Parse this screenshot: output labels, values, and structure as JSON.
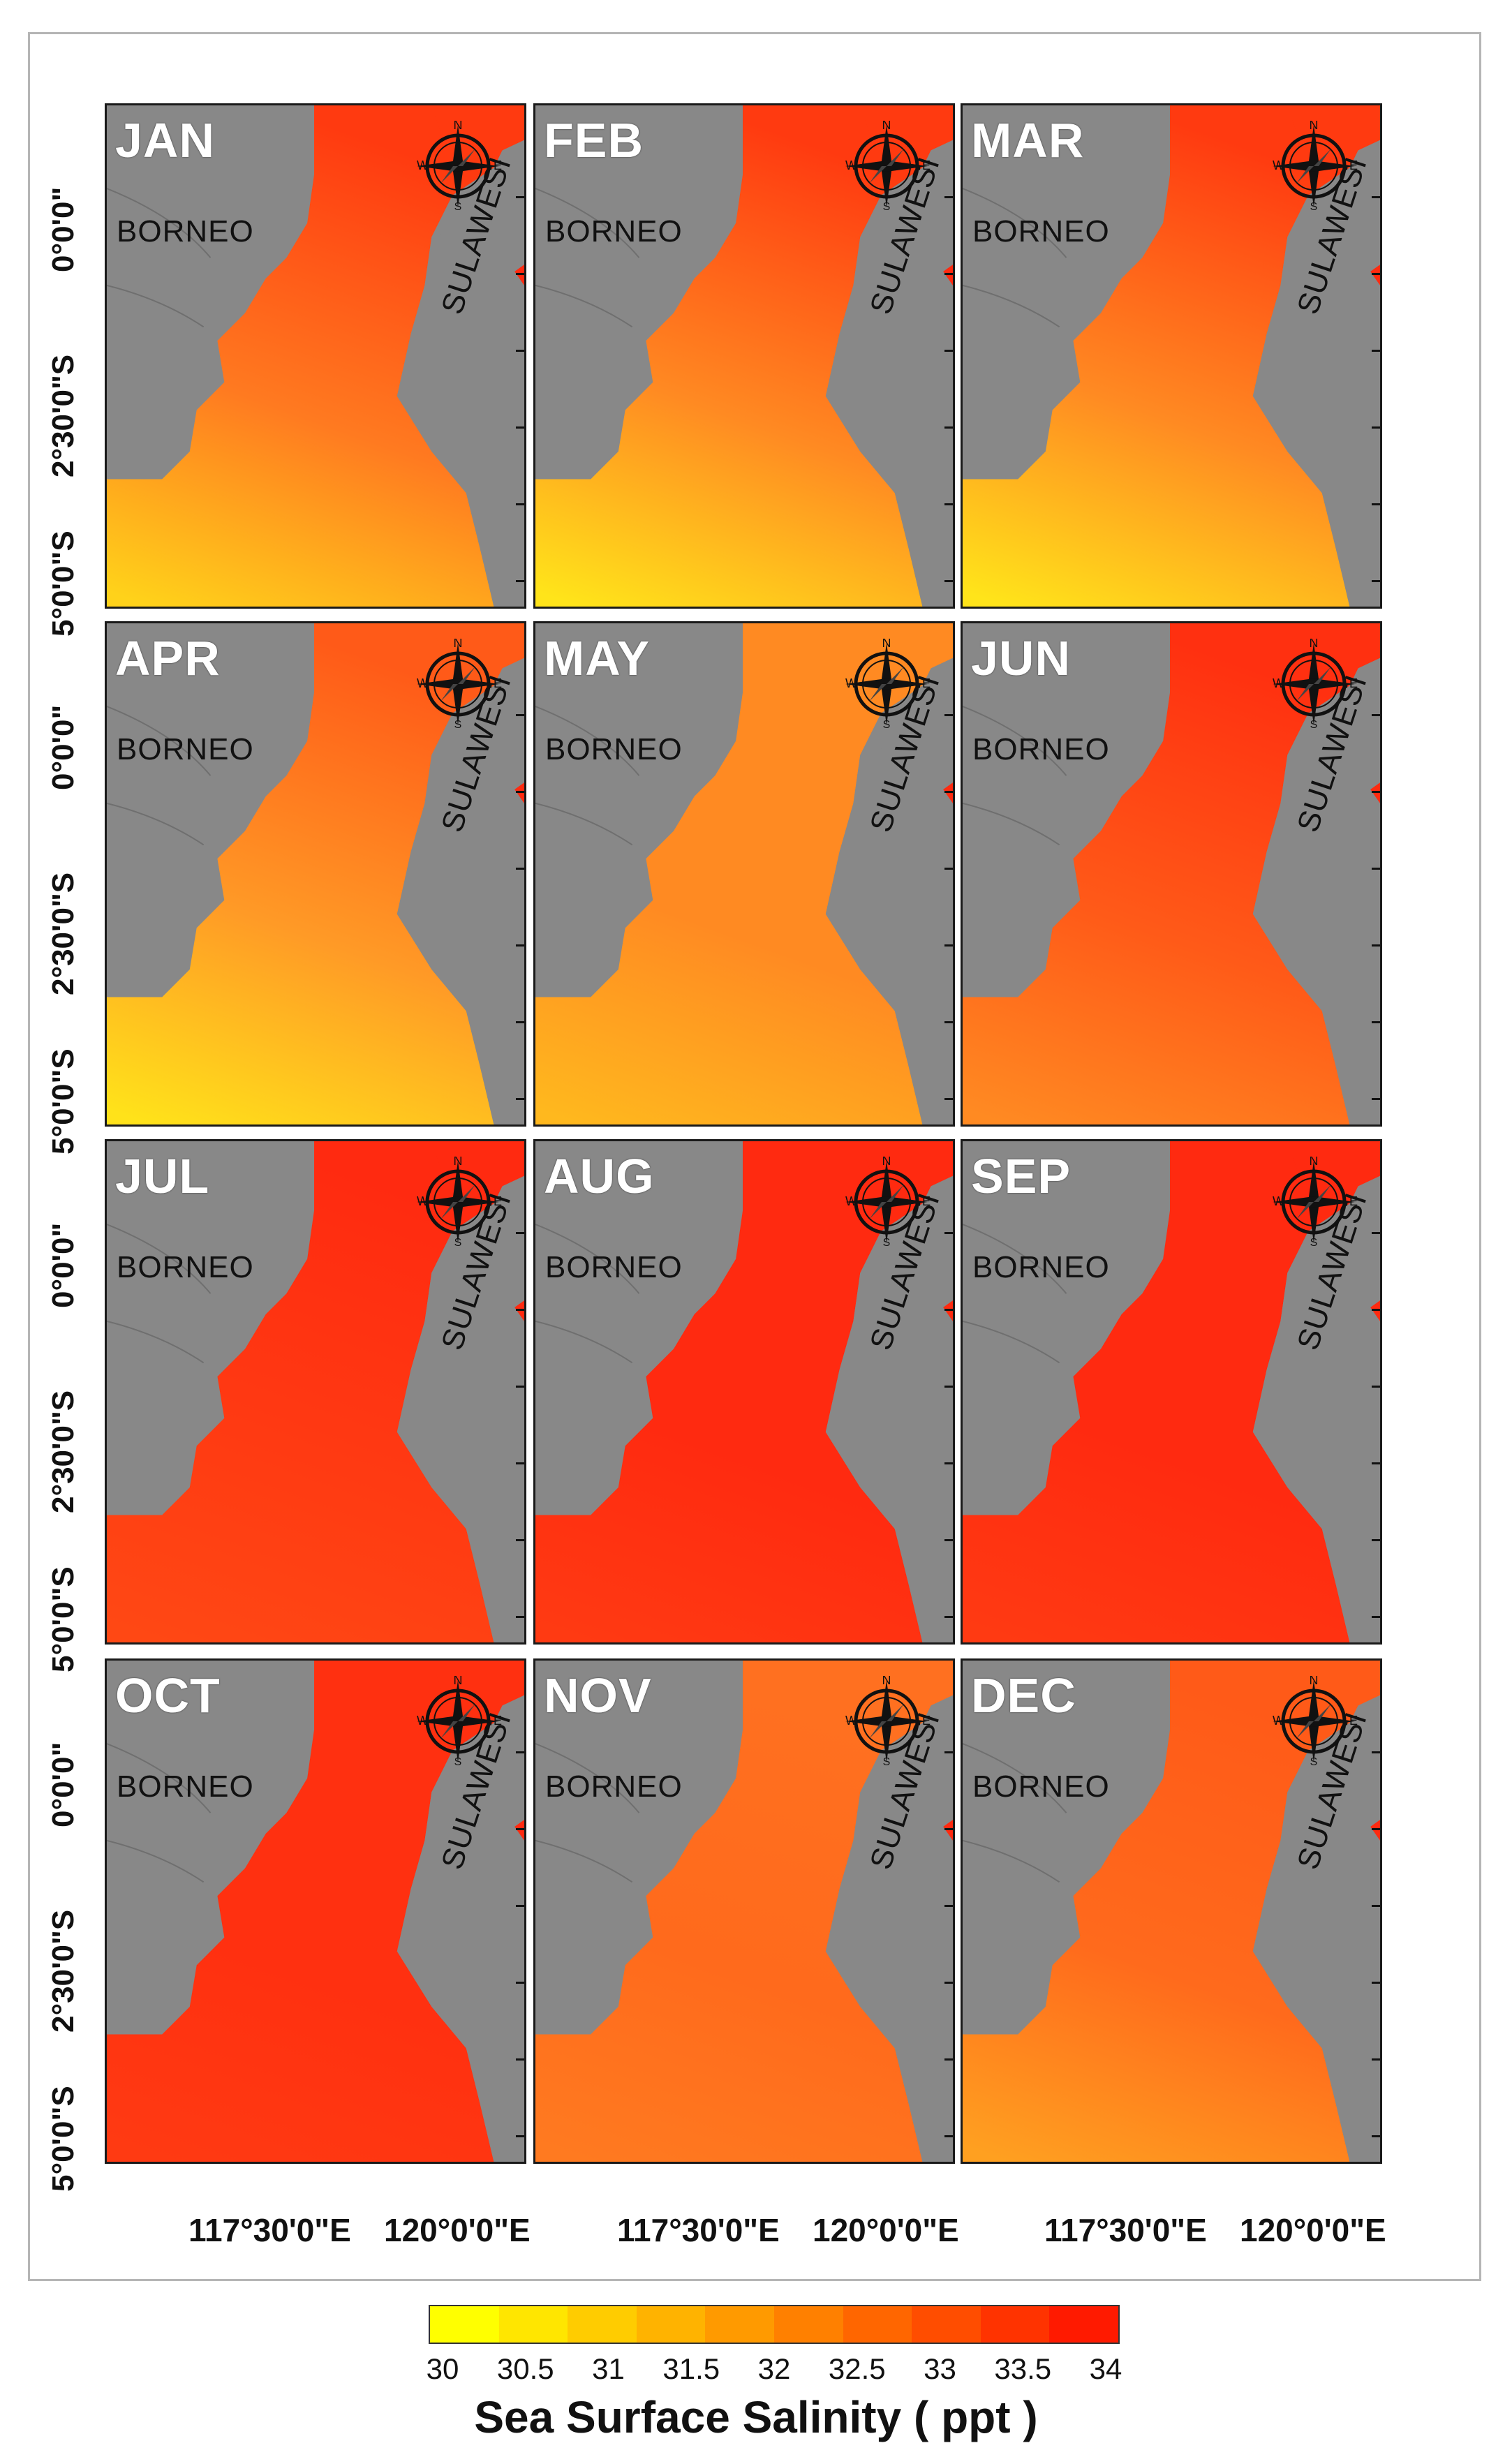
{
  "months": [
    "JAN",
    "FEB",
    "MAR",
    "APR",
    "MAY",
    "JUN",
    "JUL",
    "AUG",
    "SEP",
    "OCT",
    "NOV",
    "DEC"
  ],
  "labels": {
    "borneo": "BORNEO",
    "sulawesi": "SULAWESI"
  },
  "compass": {
    "n": "N",
    "s": "S",
    "e": "E",
    "w": "W"
  },
  "axes": {
    "y_ticks": [
      "0°0'0\"",
      "2°30'0\"S",
      "5°0'0\"S"
    ],
    "x_ticks": [
      "117°30'0\"E",
      "120°0'0\"E"
    ]
  },
  "colorbar": {
    "title": "Sea Surface Salinity ( ppt )",
    "ticks": [
      "30",
      "30.5",
      "31",
      "31.5",
      "32",
      "32.5",
      "33",
      "33.5",
      "34"
    ],
    "min": 30,
    "max": 34,
    "colors": [
      "#ffff00",
      "#ffe600",
      "#ffcc00",
      "#ffb300",
      "#ff9a00",
      "#ff8000",
      "#ff6600",
      "#ff4d00",
      "#ff3300",
      "#ff1a00"
    ]
  },
  "colors": {
    "land": "#888888",
    "water_low": "#ffff00",
    "water_high": "#ff1a00"
  },
  "map_data": {
    "salinity_tint": [
      {
        "month": "JAN",
        "north": "#ff3a10",
        "mid": "#ff7a20",
        "south": "#ffd21a"
      },
      {
        "month": "FEB",
        "north": "#ff3a10",
        "mid": "#ff8a22",
        "south": "#ffe41a"
      },
      {
        "month": "MAR",
        "north": "#ff3a10",
        "mid": "#ff8a22",
        "south": "#ffe41a"
      },
      {
        "month": "APR",
        "north": "#ff5a18",
        "mid": "#ff9a26",
        "south": "#ffe21a"
      },
      {
        "month": "MAY",
        "north": "#ff8a22",
        "mid": "#ff8a22",
        "south": "#ffb81e"
      },
      {
        "month": "JUN",
        "north": "#ff3010",
        "mid": "#ff5a18",
        "south": "#ff8a22"
      },
      {
        "month": "JUL",
        "north": "#ff2a10",
        "mid": "#ff3a12",
        "south": "#ff4814"
      },
      {
        "month": "AUG",
        "north": "#ff2a10",
        "mid": "#ff2a10",
        "south": "#ff3a12"
      },
      {
        "month": "SEP",
        "north": "#ff2a10",
        "mid": "#ff2a10",
        "south": "#ff3a12"
      },
      {
        "month": "OCT",
        "north": "#ff3010",
        "mid": "#ff3010",
        "south": "#ff3a12"
      },
      {
        "month": "NOV",
        "north": "#ff7020",
        "mid": "#ff6a1c",
        "south": "#ff7a20"
      },
      {
        "month": "DEC",
        "north": "#ff5a18",
        "mid": "#ff6a1c",
        "south": "#ffa020"
      }
    ]
  }
}
